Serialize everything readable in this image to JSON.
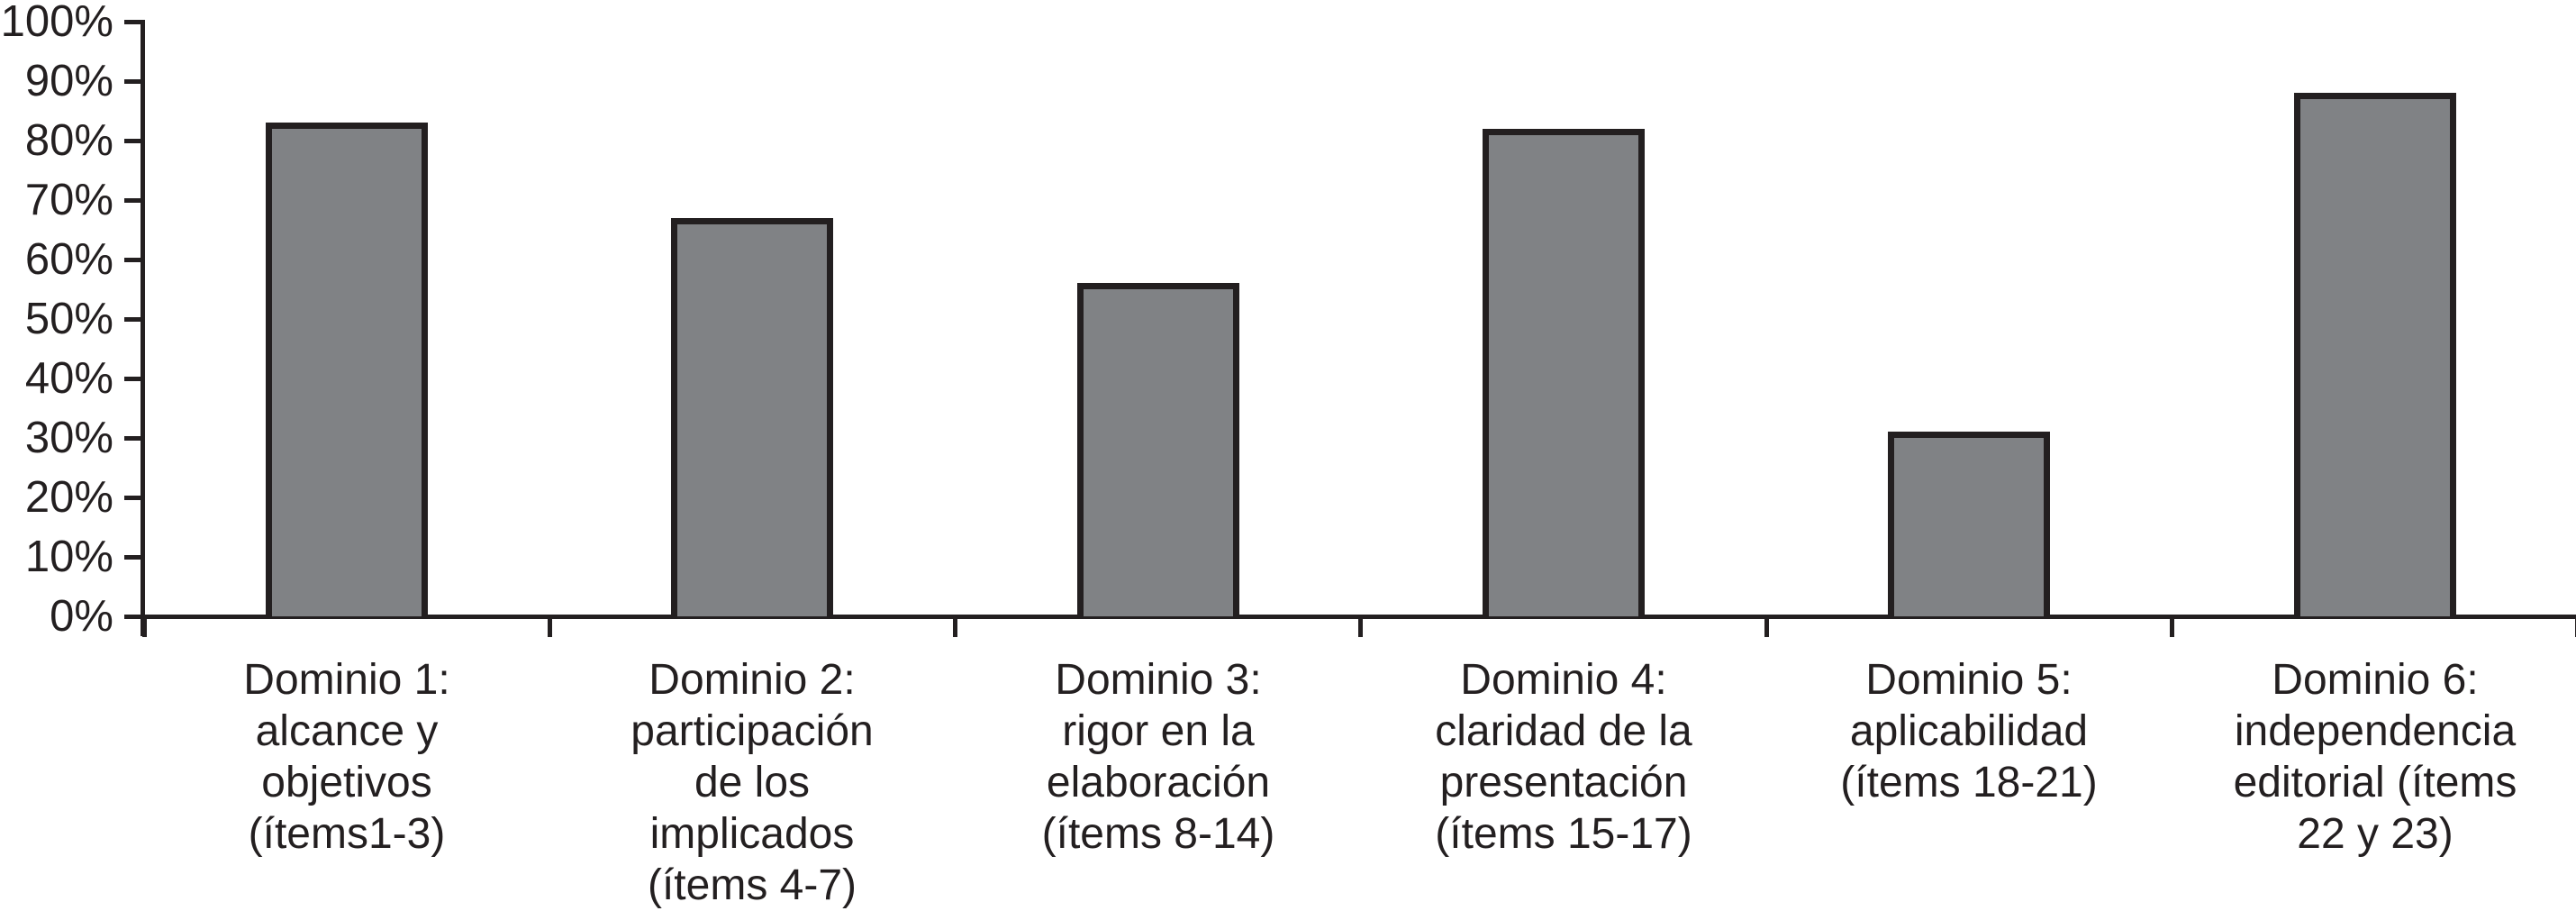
{
  "chart_data": {
    "type": "bar",
    "title": "",
    "xlabel": "",
    "ylabel": "",
    "unit": "%",
    "ylim": [
      0,
      100
    ],
    "y_tick_step": 10,
    "grid": false,
    "legend": null,
    "y_tick_labels_top_to_bottom": [
      "100%",
      "90%",
      "80%",
      "70%",
      "60%",
      "50%",
      "40%",
      "30%",
      "20%",
      "10%",
      "0%"
    ],
    "categories": [
      [
        "Dominio 1:",
        "alcance y",
        "objetivos",
        "(ítems1-3)"
      ],
      [
        "Dominio 2:",
        "participación",
        "de los",
        "implicados",
        "(ítems 4-7)"
      ],
      [
        "Dominio 3:",
        "rigor en la",
        "elaboración",
        "(ítems 8-14)"
      ],
      [
        "Dominio 4:",
        "claridad de la",
        "presentación",
        "(ítems 15-17)"
      ],
      [
        "Dominio 5:",
        "aplicabilidad",
        "(ítems 18-21)"
      ],
      [
        "Dominio 6:",
        "independencia",
        "editorial (ítems",
        "22 y 23)"
      ]
    ],
    "values": [
      83,
      67,
      56,
      82,
      31,
      88
    ],
    "colors": {
      "bar_fill": "#808285",
      "bar_border": "#231f20",
      "axis": "#231f20",
      "text": "#231f20",
      "background": "#ffffff"
    }
  }
}
